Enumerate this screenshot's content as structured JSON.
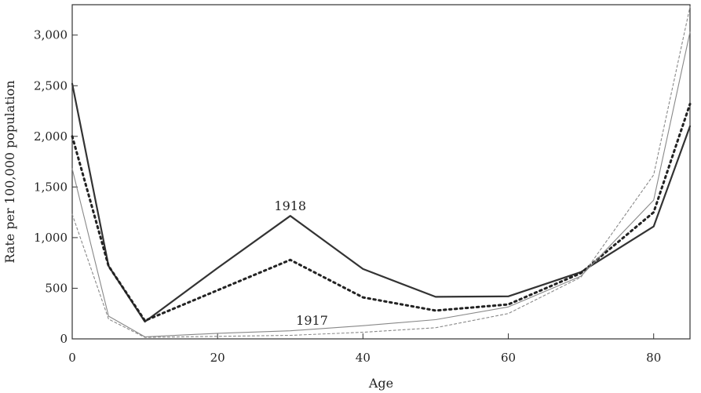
{
  "chart_data": {
    "type": "line",
    "title": "",
    "xlabel": "Age",
    "ylabel": "Rate per 100,000 population",
    "xlim": [
      0,
      85
    ],
    "ylim": [
      0,
      3300
    ],
    "x_ticks": [
      0,
      20,
      40,
      60,
      80
    ],
    "x_tick_labels": [
      "0",
      "20",
      "40",
      "60",
      "80"
    ],
    "y_ticks": [
      0,
      500,
      1000,
      1500,
      2000,
      2500,
      3000
    ],
    "y_tick_labels": [
      "0",
      "500",
      "1,000",
      "1,500",
      "2,000",
      "2,500",
      "3,000"
    ],
    "grid": false,
    "legend": "none",
    "series": [
      {
        "style": "solid-thick",
        "color": "#333333",
        "x": [
          0,
          5,
          10,
          20,
          30,
          40,
          50,
          60,
          70,
          80,
          85
        ],
        "values": [
          2520,
          720,
          170,
          700,
          1215,
          690,
          415,
          420,
          660,
          1110,
          2100
        ]
      },
      {
        "style": "dotted-thick",
        "color": "#222222",
        "x": [
          0,
          5,
          10,
          20,
          30,
          40,
          50,
          60,
          70,
          80,
          85
        ],
        "values": [
          2000,
          720,
          180,
          480,
          780,
          410,
          280,
          340,
          650,
          1250,
          2320
        ]
      },
      {
        "style": "solid-thin",
        "color": "#888888",
        "x": [
          0,
          5,
          10,
          20,
          30,
          40,
          50,
          60,
          70,
          80,
          85
        ],
        "values": [
          1680,
          225,
          20,
          55,
          80,
          130,
          190,
          315,
          620,
          1370,
          3030
        ]
      },
      {
        "style": "dotted-thin",
        "color": "#888888",
        "x": [
          0,
          5,
          10,
          20,
          30,
          40,
          50,
          60,
          70,
          80,
          85
        ],
        "values": [
          1230,
          195,
          15,
          25,
          35,
          65,
          110,
          250,
          610,
          1620,
          3280
        ]
      }
    ],
    "annotations": [
      {
        "text": "1918",
        "x": 30,
        "y": 1270
      },
      {
        "text": "1917",
        "x": 33,
        "y": 140
      }
    ]
  }
}
